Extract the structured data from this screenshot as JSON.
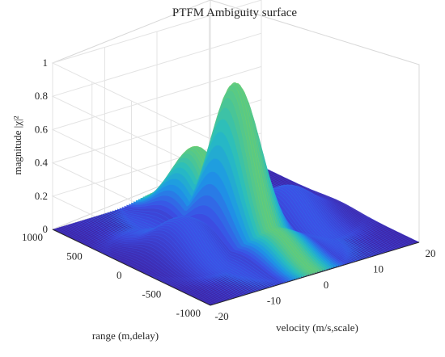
{
  "chart_data": {
    "type": "surface",
    "title": "PTFM Ambiguity surface",
    "xlabel": "velocity (m/s,scale)",
    "ylabel": "range (m,delay)",
    "zlabel": "magnitude |χ|²",
    "x_ticks": [
      -20,
      -10,
      0,
      10,
      20
    ],
    "y_ticks": [
      -1000,
      -500,
      0,
      500,
      1000
    ],
    "z_ticks": [
      0,
      0.2,
      0.4,
      0.6,
      0.8,
      1
    ],
    "xlim": [
      -20,
      20
    ],
    "ylim": [
      -1000,
      1000
    ],
    "zlim": [
      0,
      1
    ],
    "grid": true,
    "colormap": "parula",
    "colors": {
      "low": "#3e26a8",
      "mid": "#1fa5d6",
      "high": "#3fbf8a"
    },
    "peaks": [
      {
        "velocity": 0,
        "range": 0,
        "magnitude": 0.92
      },
      {
        "velocity": 0,
        "range": 500,
        "magnitude": 0.42
      },
      {
        "velocity": -10,
        "range": 0,
        "magnitude": 0.2
      },
      {
        "velocity": 10,
        "range": 0,
        "magnitude": 0.2
      },
      {
        "velocity": 0,
        "range": -500,
        "magnitude": 0.15
      }
    ]
  }
}
